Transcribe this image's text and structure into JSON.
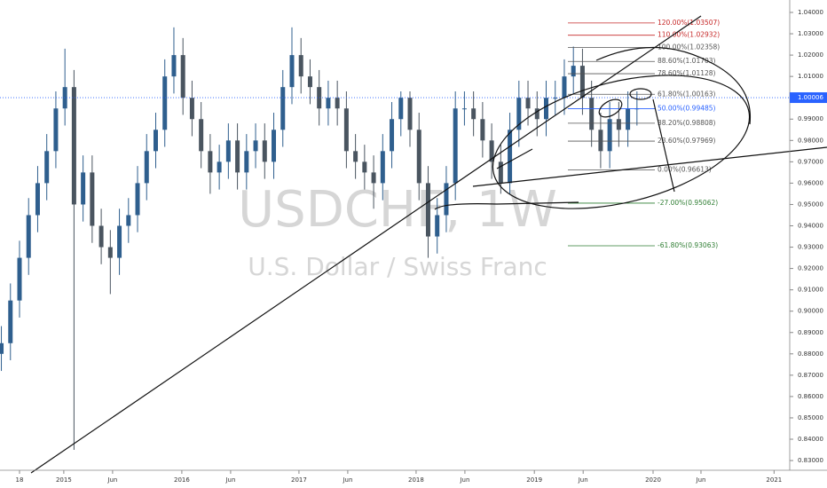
{
  "chart_data": {
    "type": "candlestick",
    "symbol": "USDCHF, 1W",
    "description": "U.S. Dollar / Swiss Franc",
    "up_color": "#2f5f8e",
    "down_color": "#4a5560",
    "x": [
      -8,
      -4,
      0,
      4,
      8,
      12,
      16,
      20,
      24,
      28,
      32,
      36,
      40,
      44,
      48,
      52,
      56,
      60,
      64,
      68,
      72,
      76,
      80,
      84,
      88,
      92,
      96,
      100,
      104,
      108,
      112,
      116,
      120,
      124,
      128,
      132,
      136,
      140,
      144,
      148,
      152,
      156,
      160,
      164,
      168,
      172,
      176,
      180,
      184,
      188,
      192,
      196,
      200,
      204,
      208,
      212,
      216,
      220,
      224,
      228,
      232,
      236,
      240,
      244,
      248,
      252,
      256,
      260,
      264,
      268,
      272
    ],
    "open": [
      0.88,
      0.885,
      0.905,
      0.925,
      0.945,
      0.96,
      0.975,
      0.995,
      1.005,
      0.95,
      0.965,
      0.94,
      0.93,
      0.925,
      0.94,
      0.945,
      0.96,
      0.975,
      0.985,
      1.01,
      1.02,
      1.0,
      0.99,
      0.975,
      0.965,
      0.97,
      0.98,
      0.965,
      0.975,
      0.98,
      0.97,
      0.985,
      1.005,
      1.02,
      1.01,
      1.005,
      0.995,
      1.0,
      0.995,
      0.975,
      0.97,
      0.965,
      0.96,
      0.975,
      0.99,
      1.0,
      0.985,
      0.96,
      0.935,
      0.945,
      0.96,
      0.995,
      0.995,
      0.99,
      0.98,
      0.97,
      0.96,
      0.985,
      1.0,
      0.995,
      0.99,
      1.0,
      1.0,
      1.01,
      1.015,
      1.0,
      0.985,
      0.975,
      0.99,
      0.985,
      0.995
    ],
    "high": [
      0.893,
      0.913,
      0.933,
      0.953,
      0.968,
      0.983,
      1.003,
      1.023,
      1.013,
      0.973,
      0.973,
      0.948,
      0.938,
      0.948,
      0.953,
      0.968,
      0.983,
      0.993,
      1.018,
      1.033,
      1.028,
      1.008,
      0.998,
      0.983,
      0.978,
      0.988,
      0.988,
      0.983,
      0.988,
      0.988,
      0.993,
      1.013,
      1.033,
      1.028,
      1.018,
      1.013,
      1.008,
      1.008,
      1.003,
      0.983,
      0.978,
      0.973,
      0.983,
      0.998,
      1.003,
      1.003,
      0.993,
      0.968,
      0.953,
      0.968,
      1.003,
      1.003,
      1.003,
      0.998,
      0.988,
      0.978,
      0.993,
      1.008,
      1.008,
      1.003,
      1.008,
      1.008,
      1.018,
      1.024,
      1.023,
      1.008,
      0.993,
      0.998,
      0.998,
      1.003,
      1.003
    ],
    "low": [
      0.872,
      0.877,
      0.897,
      0.917,
      0.937,
      0.952,
      0.967,
      0.987,
      0.835,
      0.942,
      0.932,
      0.922,
      0.908,
      0.917,
      0.932,
      0.937,
      0.952,
      0.967,
      0.977,
      1.002,
      0.992,
      0.982,
      0.967,
      0.955,
      0.957,
      0.962,
      0.957,
      0.957,
      0.967,
      0.962,
      0.962,
      0.977,
      0.997,
      1.002,
      0.997,
      0.987,
      0.987,
      0.987,
      0.967,
      0.962,
      0.957,
      0.948,
      0.952,
      0.967,
      0.982,
      0.977,
      0.952,
      0.925,
      0.927,
      0.937,
      0.952,
      0.987,
      0.982,
      0.972,
      0.962,
      0.955,
      0.955,
      0.977,
      0.987,
      0.982,
      0.982,
      0.992,
      0.992,
      1.002,
      0.992,
      0.977,
      0.967,
      0.967,
      0.977,
      0.977,
      0.987
    ],
    "close": [
      0.885,
      0.905,
      0.925,
      0.945,
      0.96,
      0.975,
      0.995,
      1.005,
      0.95,
      0.965,
      0.94,
      0.93,
      0.925,
      0.94,
      0.945,
      0.96,
      0.975,
      0.985,
      1.01,
      1.02,
      1.0,
      0.99,
      0.975,
      0.965,
      0.97,
      0.98,
      0.965,
      0.975,
      0.98,
      0.97,
      0.985,
      1.005,
      1.02,
      1.01,
      1.005,
      0.995,
      1.0,
      0.995,
      0.975,
      0.97,
      0.965,
      0.96,
      0.975,
      0.99,
      1.0,
      0.985,
      0.96,
      0.935,
      0.945,
      0.96,
      0.995,
      0.995,
      0.99,
      0.98,
      0.97,
      0.96,
      0.985,
      1.0,
      0.995,
      0.99,
      1.0,
      1.0,
      1.01,
      1.015,
      1.0,
      0.985,
      0.975,
      0.99,
      0.985,
      0.995,
      0.995
    ],
    "current_price": 1.00006,
    "current_color": "#2962ff",
    "xlim": [
      -8.6,
      339.3
    ],
    "xticks": [
      {
        "value": 0,
        "label": "18"
      },
      {
        "value": 19.5,
        "label": "2015"
      },
      {
        "value": 41.0,
        "label": "Jun"
      },
      {
        "value": 71.5,
        "label": "2016"
      },
      {
        "value": 93.0,
        "label": "Jun"
      },
      {
        "value": 123.1,
        "label": "2017"
      },
      {
        "value": 144.6,
        "label": "Jun"
      },
      {
        "value": 174.7,
        "label": "2018"
      },
      {
        "value": 196.2,
        "label": "Jun"
      },
      {
        "value": 226.8,
        "label": "2019"
      },
      {
        "value": 248.3,
        "label": "Jun"
      },
      {
        "value": 279.1,
        "label": "2020"
      },
      {
        "value": 300.2,
        "label": "Jun"
      },
      {
        "value": 332.4,
        "label": "2021"
      }
    ],
    "ylim": [
      0.82545,
      1.04582
    ],
    "yticks": [
      {
        "value": 1.04,
        "label": "1.04000"
      },
      {
        "value": 1.03,
        "label": "1.03000"
      },
      {
        "value": 1.02,
        "label": "1.02000"
      },
      {
        "value": 1.01,
        "label": "1.01000"
      },
      {
        "value": 1.0,
        "label": "1.00000"
      },
      {
        "value": 0.99,
        "label": "0.99000"
      },
      {
        "value": 0.98,
        "label": "0.98000"
      },
      {
        "value": 0.97,
        "label": "0.97000"
      },
      {
        "value": 0.96,
        "label": "0.96000"
      },
      {
        "value": 0.95,
        "label": "0.95000"
      },
      {
        "value": 0.94,
        "label": "0.94000"
      },
      {
        "value": 0.93,
        "label": "0.93000"
      },
      {
        "value": 0.92,
        "label": "0.92000"
      },
      {
        "value": 0.91,
        "label": "0.91000"
      },
      {
        "value": 0.9,
        "label": "0.90000"
      },
      {
        "value": 0.89,
        "label": "0.89000"
      },
      {
        "value": 0.88,
        "label": "0.88000"
      },
      {
        "value": 0.87,
        "label": "0.87000"
      },
      {
        "value": 0.86,
        "label": "0.86000"
      },
      {
        "value": 0.85,
        "label": "0.85000"
      },
      {
        "value": 0.84,
        "label": "0.84000"
      },
      {
        "value": 0.83,
        "label": "0.83000"
      }
    ],
    "fib_levels": [
      {
        "label": "120.00%(1.03507)",
        "price": 1.03507,
        "color": "#c62828"
      },
      {
        "label": "110.00%(1.02932)",
        "price": 1.02932,
        "color": "#c62828"
      },
      {
        "label": "100.00%(1.02358)",
        "price": 1.02358,
        "color": "#555555"
      },
      {
        "label": "88.60%(1.01703)",
        "price": 1.01703,
        "color": "#555555"
      },
      {
        "label": "78.60%(1.01128)",
        "price": 1.01128,
        "color": "#555555"
      },
      {
        "label": "61.80%(1.00163)",
        "price": 1.00163,
        "color": "#555555"
      },
      {
        "label": "50.00%(0.99485)",
        "price": 0.99485,
        "color": "#2962ff"
      },
      {
        "label": "38.20%(0.98808)",
        "price": 0.98808,
        "color": "#555555"
      },
      {
        "label": "23.60%(0.97969)",
        "price": 0.97969,
        "color": "#555555"
      },
      {
        "label": "0.00%(0.96613)",
        "price": 0.96613,
        "color": "#555555"
      },
      {
        "label": "-27.00%(0.95062)",
        "price": 0.95062,
        "color": "#2e7d32"
      },
      {
        "label": "-61.80%(0.93063)",
        "price": 0.93063,
        "color": "#2e7d32"
      }
    ]
  }
}
